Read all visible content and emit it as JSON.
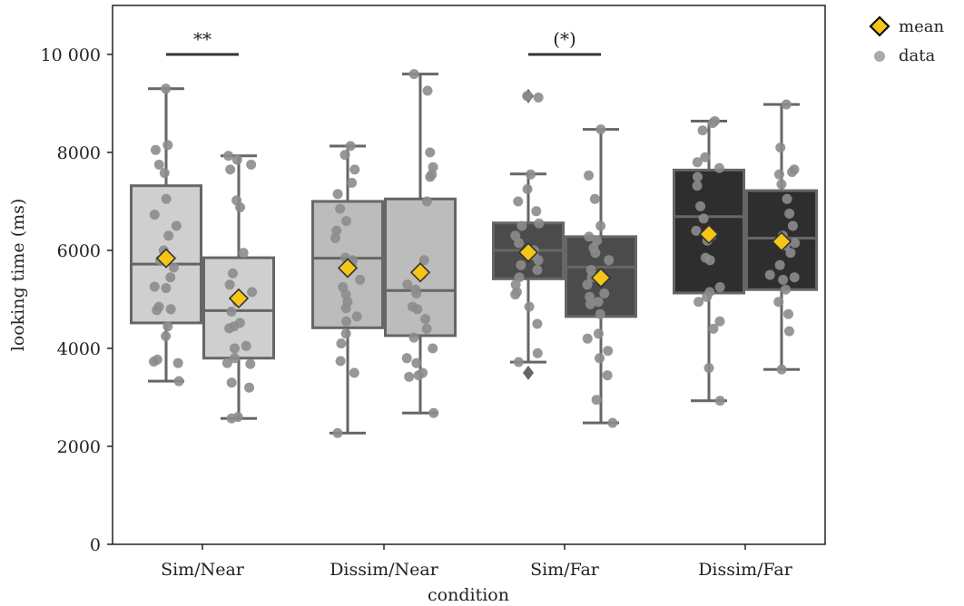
{
  "chart_data": {
    "type": "box",
    "xlabel": "condition",
    "ylabel": "looking time (ms)",
    "ylim": [
      0,
      11000
    ],
    "yticks": [
      0,
      2000,
      4000,
      6000,
      8000,
      10000
    ],
    "ytick_labels": [
      "0",
      "2000",
      "4000",
      "6000",
      "8000",
      "10 000"
    ],
    "categories": [
      "Sim/Near",
      "Dissim/Near",
      "Sim/Far",
      "Dissim/Far"
    ],
    "legend": {
      "position": "top-right-outside",
      "entries": [
        {
          "label": "mean",
          "marker": "diamond",
          "color": "#f5c518"
        },
        {
          "label": "data",
          "marker": "circle",
          "color": "#aaaaaa"
        }
      ]
    },
    "colors": {
      "light": "#cfcfcf",
      "mid": "#bcbcbc",
      "dark": "#4b4b4b",
      "darkest": "#2e2e2e",
      "edge": "#666666",
      "point": "#8c8c8c",
      "mean": "#f5c518"
    },
    "boxes": [
      {
        "group": 0,
        "offset": -1,
        "shade": "light",
        "whisker_low": 3330,
        "q1": 4520,
        "median": 5720,
        "q3": 7320,
        "whisker_high": 9300,
        "mean": 5840,
        "points": [
          9300,
          8150,
          8050,
          7750,
          7580,
          7050,
          6730,
          6500,
          6300,
          6000,
          5800,
          5650,
          5450,
          5260,
          5230,
          4850,
          4800,
          4780,
          4450,
          4250,
          3770,
          3730,
          3700,
          3330
        ],
        "outliers": []
      },
      {
        "group": 0,
        "offset": 1,
        "shade": "light",
        "whisker_low": 2570,
        "q1": 3800,
        "median": 4770,
        "q3": 5850,
        "whisker_high": 7930,
        "mean": 5020,
        "points": [
          7930,
          7850,
          7750,
          7650,
          7020,
          6880,
          5950,
          5530,
          5300,
          5150,
          4950,
          4750,
          4520,
          4450,
          4410,
          4050,
          4000,
          3800,
          3700,
          3680,
          3300,
          3200,
          2600,
          2570
        ],
        "outliers": []
      },
      {
        "group": 1,
        "offset": -1,
        "shade": "mid",
        "whisker_low": 2270,
        "q1": 4420,
        "median": 5840,
        "q3": 7000,
        "whisker_high": 8130,
        "mean": 5640,
        "points": [
          8130,
          7950,
          7650,
          7380,
          7150,
          6850,
          6600,
          6400,
          6250,
          5850,
          5800,
          5700,
          5400,
          5250,
          5100,
          4950,
          4820,
          4650,
          4550,
          4300,
          4100,
          3740,
          3500,
          2270
        ],
        "outliers": []
      },
      {
        "group": 1,
        "offset": 1,
        "shade": "mid",
        "whisker_low": 2680,
        "q1": 4260,
        "median": 5180,
        "q3": 7050,
        "whisker_high": 9600,
        "mean": 5550,
        "points": [
          9600,
          9260,
          8000,
          7700,
          7550,
          7500,
          7000,
          5800,
          5500,
          5300,
          5200,
          5120,
          4850,
          4800,
          4600,
          4400,
          4220,
          4000,
          3800,
          3700,
          3500,
          3450,
          3420,
          2680
        ],
        "outliers": []
      },
      {
        "group": 2,
        "offset": -1,
        "shade": "dark",
        "whisker_low": 3720,
        "q1": 5420,
        "median": 6000,
        "q3": 6560,
        "whisker_high": 7560,
        "mean": 5960,
        "points": [
          9150,
          9120,
          7550,
          7250,
          7000,
          6800,
          6550,
          6500,
          6300,
          6150,
          6000,
          5950,
          5900,
          5800,
          5700,
          5600,
          5450,
          5300,
          5150,
          5100,
          4850,
          4500,
          3900,
          3720
        ],
        "outliers": [
          9150,
          3500
        ]
      },
      {
        "group": 2,
        "offset": 1,
        "shade": "dark",
        "whisker_low": 2480,
        "q1": 4650,
        "median": 5660,
        "q3": 6280,
        "whisker_high": 8470,
        "mean": 5440,
        "points": [
          8470,
          7530,
          7050,
          6500,
          6280,
          6200,
          6050,
          5950,
          5800,
          5600,
          5450,
          5300,
          5120,
          5050,
          4950,
          4900,
          4700,
          4300,
          4200,
          3950,
          3800,
          3450,
          2950,
          2480
        ],
        "outliers": []
      },
      {
        "group": 3,
        "offset": -1,
        "shade": "darkest",
        "whisker_low": 2930,
        "q1": 5130,
        "median": 6690,
        "q3": 7640,
        "whisker_high": 8640,
        "mean": 6330,
        "points": [
          8640,
          8600,
          8450,
          7900,
          7800,
          7680,
          7500,
          7320,
          6900,
          6650,
          6400,
          6300,
          6200,
          5850,
          5800,
          5250,
          5150,
          5050,
          4950,
          4550,
          4400,
          3600,
          2930
        ],
        "outliers": []
      },
      {
        "group": 3,
        "offset": 1,
        "shade": "darkest",
        "whisker_low": 3570,
        "q1": 5200,
        "median": 6250,
        "q3": 7220,
        "whisker_high": 8980,
        "mean": 6180,
        "points": [
          8980,
          8100,
          7650,
          7600,
          7550,
          7350,
          7050,
          6750,
          6500,
          6300,
          6150,
          6100,
          5950,
          5700,
          5500,
          5450,
          5400,
          5200,
          4950,
          4700,
          4350,
          3570
        ],
        "outliers": []
      }
    ],
    "significance": [
      {
        "label": "**",
        "group": 0,
        "y": 10000
      },
      {
        "label": "(*)",
        "group": 2,
        "y": 10000
      }
    ]
  }
}
